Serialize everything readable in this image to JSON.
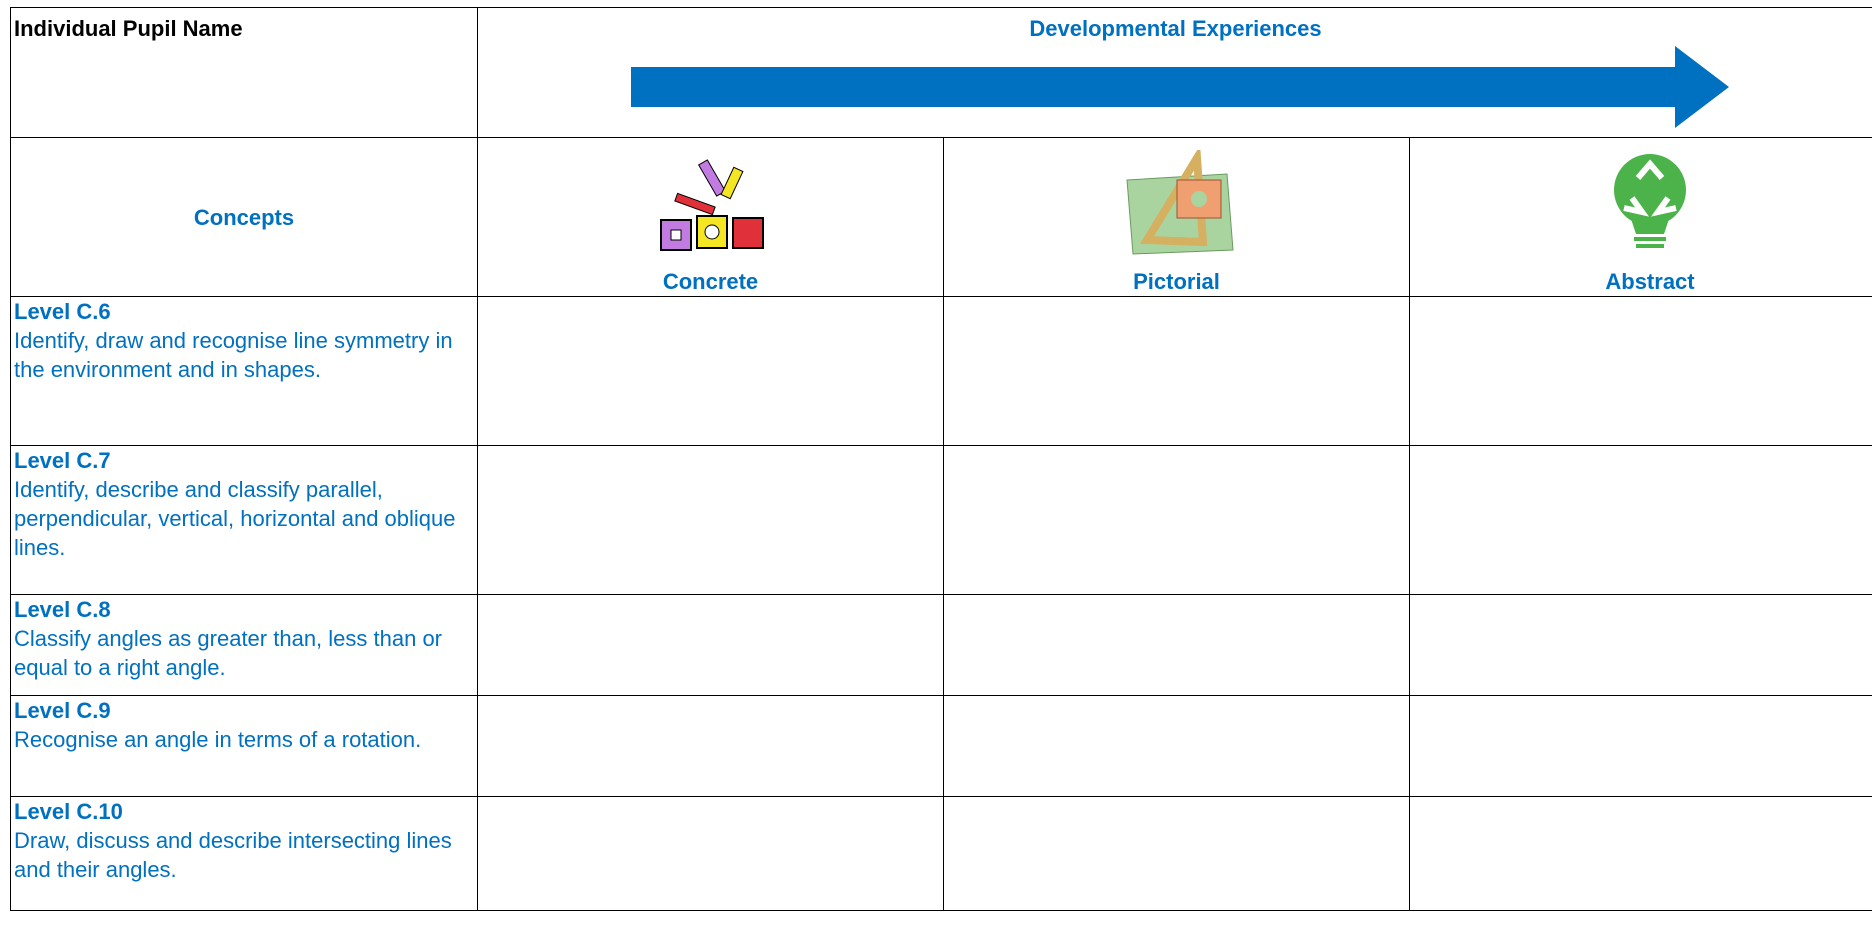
{
  "header": {
    "pupil_name_label": "Individual Pupil Name",
    "developmental_experiences": "Developmental Experiences"
  },
  "columns": {
    "concepts": "Concepts",
    "concrete": "Concrete",
    "pictorial": "Pictorial",
    "abstract": "Abstract"
  },
  "rows": [
    {
      "level": "Level C.6",
      "description": "Identify, draw and recognise line symmetry in the environment and in shapes."
    },
    {
      "level": "Level C.7",
      "description": "Identify, describe and classify parallel, perpendicular, vertical, horizontal and oblique lines."
    },
    {
      "level": "Level C.8",
      "description": "Classify angles as greater than, less than or equal to a right angle."
    },
    {
      "level": "Level C.9",
      "description": "Recognise an angle in terms of a rotation."
    },
    {
      "level": "Level C.10",
      "description": "Draw, discuss and describe intersecting lines and their angles."
    }
  ]
}
